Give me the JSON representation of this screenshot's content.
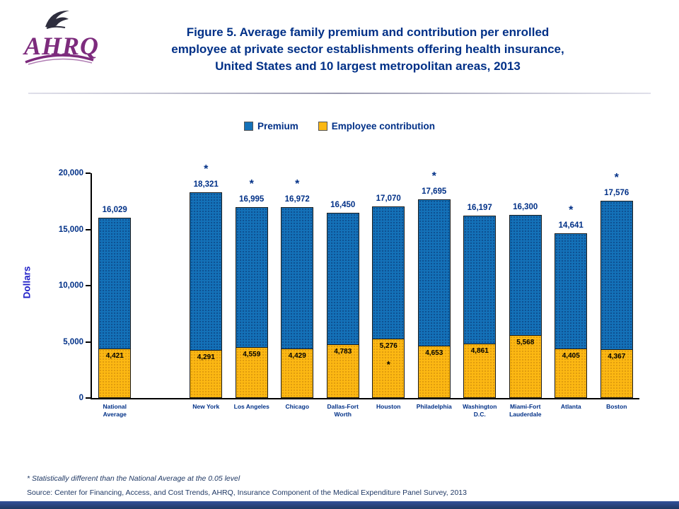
{
  "logo": {
    "text": "AHRQ"
  },
  "header": {
    "title_lines": [
      "Figure 5. Average family premium and contribution per enrolled",
      "employee at private sector establishments offering health insurance,",
      "United States and 10 largest metropolitan areas, 2013"
    ]
  },
  "legend": {
    "items": [
      {
        "label": "Premium",
        "color": "#1471B8"
      },
      {
        "label": "Employee contribution",
        "color": "#FCB813"
      }
    ]
  },
  "chart_data": {
    "type": "bar",
    "title": "Average family premium and contribution per enrolled employee, 2013",
    "ylabel": "Dollars",
    "xlabel": "",
    "ylim": [
      0,
      20000
    ],
    "yticks": [
      0,
      5000,
      10000,
      15000,
      20000
    ],
    "ytick_labels": [
      "0",
      "5,000",
      "10,000",
      "15,000",
      "20,000"
    ],
    "grid": false,
    "legend_position": "top",
    "categories": [
      "National\nAverage",
      "New York",
      "Los Angeles",
      "Chicago",
      "Dallas-Fort\nWorth",
      "Houston",
      "Philadelphia",
      "Washington\nD.C.",
      "Miami-Fort\nLauderdale",
      "Atlanta",
      "Boston"
    ],
    "series": [
      {
        "name": "Premium",
        "color": "#1471B8",
        "values": [
          16029,
          18321,
          16995,
          16972,
          16450,
          17070,
          17695,
          16197,
          16300,
          14641,
          17576
        ]
      },
      {
        "name": "Employee contribution",
        "color": "#FCB813",
        "values": [
          4421,
          4291,
          4559,
          4429,
          4783,
          5276,
          4653,
          4861,
          5568,
          4405,
          4367
        ]
      }
    ],
    "premium_labels": [
      "16,029",
      "18,321",
      "16,995",
      "16,972",
      "16,450",
      "17,070",
      "17,695",
      "16,197",
      "16,300",
      "14,641",
      "17,576"
    ],
    "contribution_labels": [
      "4,421",
      "4,291",
      "4,559",
      "4,429",
      "4,783",
      "5,276",
      "4,653",
      "4,861",
      "5,568",
      "4,405",
      "4,367"
    ],
    "premium_significant": [
      false,
      true,
      true,
      true,
      false,
      false,
      true,
      false,
      false,
      true,
      true
    ],
    "contribution_significant": [
      false,
      false,
      false,
      false,
      false,
      true,
      false,
      false,
      false,
      false,
      false
    ],
    "significance_marker": "*"
  },
  "footnotes": {
    "note": "* Statistically different than the National Average at the 0.05 level",
    "source": "Source: Center for Financing, Access, and Cost Trends, AHRQ, Insurance Component of the Medical Expenditure Panel Survey, 2013"
  }
}
